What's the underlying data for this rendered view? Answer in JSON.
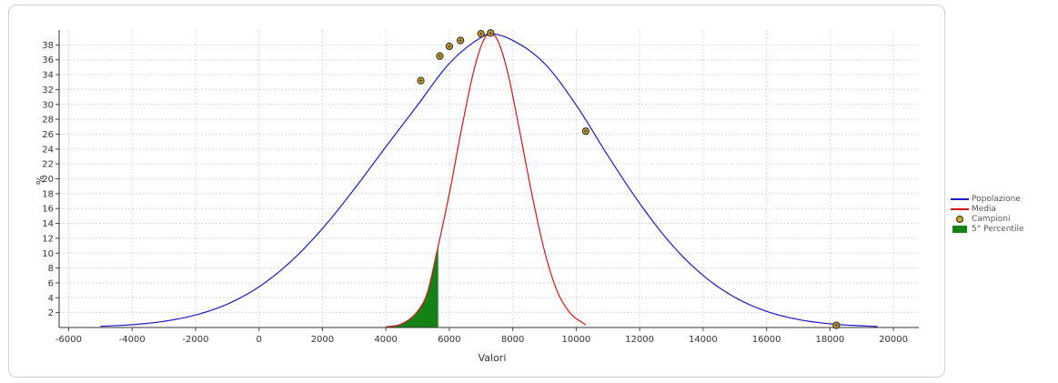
{
  "chart_data": {
    "type": "line",
    "title": "",
    "xlabel": "Valori",
    "ylabel": "%",
    "xlim": [
      -6300,
      20800
    ],
    "ylim": [
      0,
      40
    ],
    "x_ticks": [
      -6000,
      -4000,
      -2000,
      0,
      2000,
      4000,
      6000,
      8000,
      10000,
      12000,
      14000,
      16000,
      18000,
      20000
    ],
    "y_ticks": [
      2,
      4,
      6,
      8,
      10,
      12,
      14,
      16,
      18,
      20,
      22,
      24,
      26,
      28,
      30,
      32,
      34,
      36,
      38
    ],
    "grid": true,
    "legend_position": "right",
    "series": [
      {
        "name": "Popolazione",
        "color": "#1a1acc",
        "x": [
          -5000,
          -4000,
          -3000,
          -2000,
          -1000,
          0,
          1000,
          2000,
          3000,
          4000,
          5000,
          6000,
          7000,
          7300,
          8000,
          9000,
          10000,
          11000,
          12000,
          13000,
          14000,
          15000,
          16000,
          17000,
          18000,
          19500
        ],
        "y": [
          0.16,
          0.38,
          0.83,
          1.68,
          3.14,
          5.47,
          8.86,
          13.3,
          18.6,
          24.3,
          29.9,
          35.5,
          39.0,
          39.5,
          38.6,
          35.5,
          29.9,
          23.1,
          16.7,
          11.2,
          7.0,
          4.06,
          2.18,
          1.08,
          0.5,
          0.12
        ]
      },
      {
        "name": "Media",
        "color": "#dd1111",
        "x": [
          4000,
          4500,
          5000,
          5300,
          5600,
          6000,
          6400,
          6800,
          7100,
          7300,
          7500,
          7800,
          8200,
          8600,
          9000,
          9400,
          9800,
          10300
        ],
        "y": [
          0.07,
          0.5,
          2.2,
          4.6,
          10.0,
          18.0,
          27.0,
          35.0,
          38.8,
          39.5,
          38.8,
          35.0,
          26.8,
          18.0,
          10.3,
          4.9,
          2.0,
          0.35
        ]
      }
    ],
    "samples": {
      "name": "Campioni",
      "color": "#d7a623",
      "x": [
        5100,
        5700,
        6000,
        6350,
        7000,
        7300,
        10300,
        18200
      ],
      "y": [
        33.2,
        36.5,
        37.8,
        38.6,
        39.5,
        39.6,
        26.4,
        0.3
      ]
    },
    "percentile_area": {
      "name": "5° Percentile",
      "color": "#148214",
      "x_from": 4000,
      "x_to": 5650
    },
    "legend": [
      "Popolazione",
      "Media",
      "Campioni",
      "5° Percentile"
    ]
  }
}
